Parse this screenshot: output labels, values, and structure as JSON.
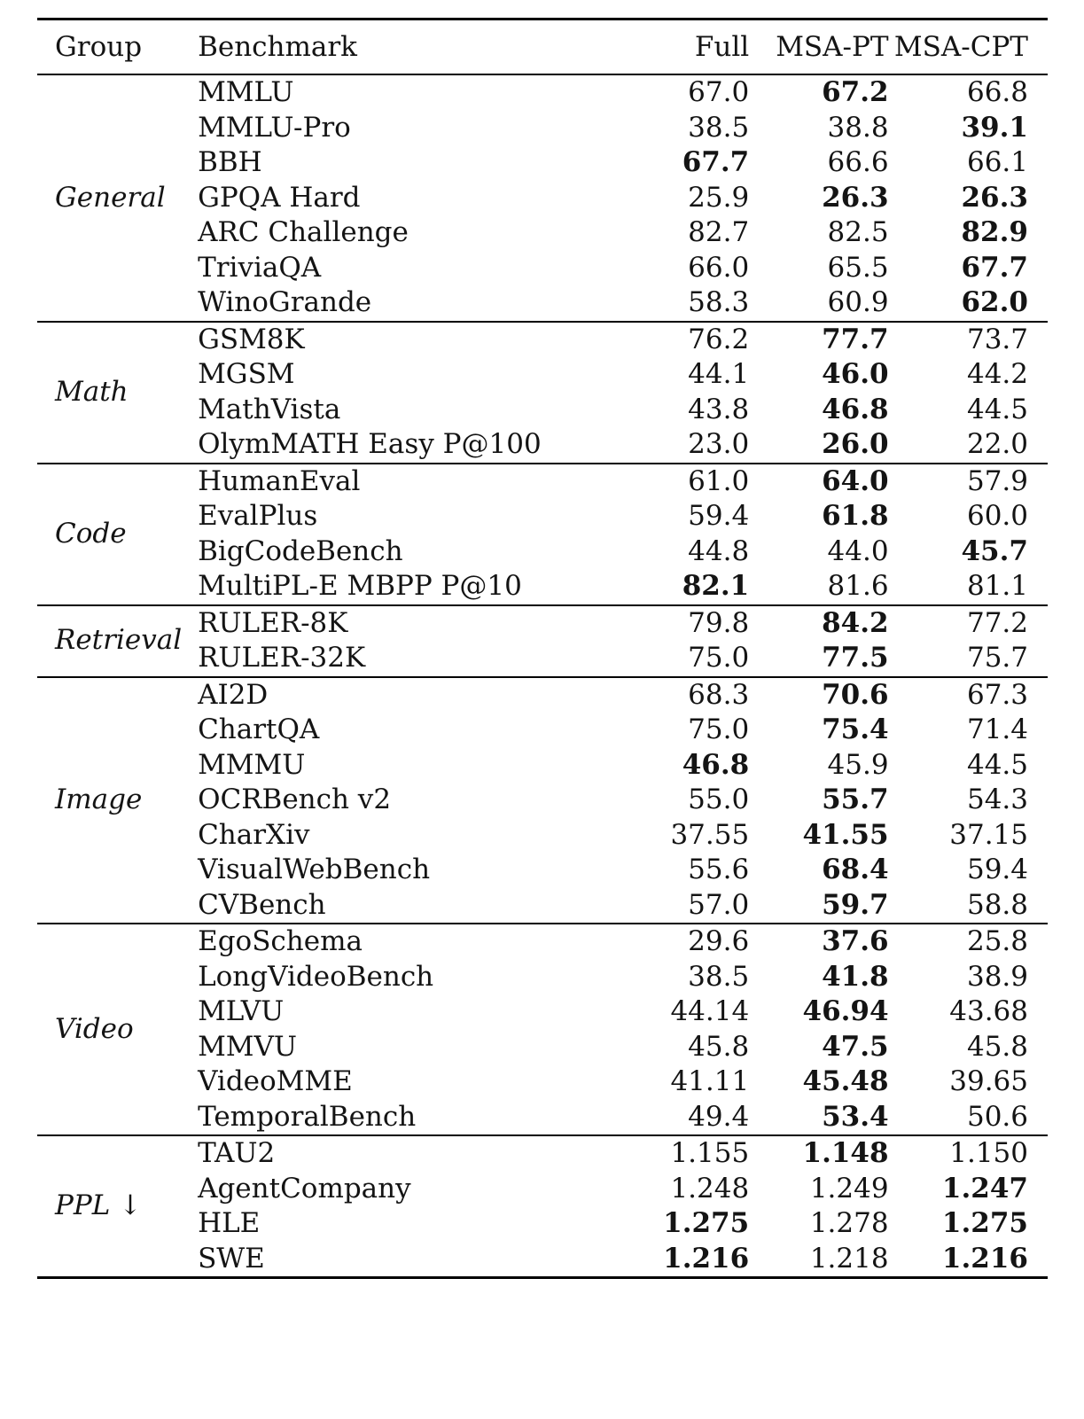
{
  "table": {
    "headers": {
      "group": "Group",
      "benchmark": "Benchmark",
      "full": "Full",
      "msa_pt": "MSA-PT",
      "msa_cpt": "MSA-CPT"
    },
    "groups": [
      {
        "name": "General",
        "rows": [
          {
            "benchmark": "MMLU",
            "full": "67.0",
            "msa_pt": "67.2",
            "msa_cpt": "66.8",
            "best": [
              "msa_pt"
            ]
          },
          {
            "benchmark": "MMLU-Pro",
            "full": "38.5",
            "msa_pt": "38.8",
            "msa_cpt": "39.1",
            "best": [
              "msa_cpt"
            ]
          },
          {
            "benchmark": "BBH",
            "full": "67.7",
            "msa_pt": "66.6",
            "msa_cpt": "66.1",
            "best": [
              "full"
            ]
          },
          {
            "benchmark": "GPQA Hard",
            "full": "25.9",
            "msa_pt": "26.3",
            "msa_cpt": "26.3",
            "best": [
              "msa_pt",
              "msa_cpt"
            ]
          },
          {
            "benchmark": "ARC Challenge",
            "full": "82.7",
            "msa_pt": "82.5",
            "msa_cpt": "82.9",
            "best": [
              "msa_cpt"
            ]
          },
          {
            "benchmark": "TriviaQA",
            "full": "66.0",
            "msa_pt": "65.5",
            "msa_cpt": "67.7",
            "best": [
              "msa_cpt"
            ]
          },
          {
            "benchmark": "WinoGrande",
            "full": "58.3",
            "msa_pt": "60.9",
            "msa_cpt": "62.0",
            "best": [
              "msa_cpt"
            ]
          }
        ]
      },
      {
        "name": "Math",
        "rows": [
          {
            "benchmark": "GSM8K",
            "full": "76.2",
            "msa_pt": "77.7",
            "msa_cpt": "73.7",
            "best": [
              "msa_pt"
            ]
          },
          {
            "benchmark": "MGSM",
            "full": "44.1",
            "msa_pt": "46.0",
            "msa_cpt": "44.2",
            "best": [
              "msa_pt"
            ]
          },
          {
            "benchmark": "MathVista",
            "full": "43.8",
            "msa_pt": "46.8",
            "msa_cpt": "44.5",
            "best": [
              "msa_pt"
            ]
          },
          {
            "benchmark": "OlymMATH Easy P@100",
            "full": "23.0",
            "msa_pt": "26.0",
            "msa_cpt": "22.0",
            "best": [
              "msa_pt"
            ]
          }
        ]
      },
      {
        "name": "Code",
        "rows": [
          {
            "benchmark": "HumanEval",
            "full": "61.0",
            "msa_pt": "64.0",
            "msa_cpt": "57.9",
            "best": [
              "msa_pt"
            ]
          },
          {
            "benchmark": "EvalPlus",
            "full": "59.4",
            "msa_pt": "61.8",
            "msa_cpt": "60.0",
            "best": [
              "msa_pt"
            ]
          },
          {
            "benchmark": "BigCodeBench",
            "full": "44.8",
            "msa_pt": "44.0",
            "msa_cpt": "45.7",
            "best": [
              "msa_cpt"
            ]
          },
          {
            "benchmark": "MultiPL-E MBPP P@10",
            "full": "82.1",
            "msa_pt": "81.6",
            "msa_cpt": "81.1",
            "best": [
              "full"
            ]
          }
        ]
      },
      {
        "name": "Retrieval",
        "rows": [
          {
            "benchmark": "RULER-8K",
            "full": "79.8",
            "msa_pt": "84.2",
            "msa_cpt": "77.2",
            "best": [
              "msa_pt"
            ]
          },
          {
            "benchmark": "RULER-32K",
            "full": "75.0",
            "msa_pt": "77.5",
            "msa_cpt": "75.7",
            "best": [
              "msa_pt"
            ]
          }
        ]
      },
      {
        "name": "Image",
        "rows": [
          {
            "benchmark": "AI2D",
            "full": "68.3",
            "msa_pt": "70.6",
            "msa_cpt": "67.3",
            "best": [
              "msa_pt"
            ]
          },
          {
            "benchmark": "ChartQA",
            "full": "75.0",
            "msa_pt": "75.4",
            "msa_cpt": "71.4",
            "best": [
              "msa_pt"
            ]
          },
          {
            "benchmark": "MMMU",
            "full": "46.8",
            "msa_pt": "45.9",
            "msa_cpt": "44.5",
            "best": [
              "full"
            ]
          },
          {
            "benchmark": "OCRBench v2",
            "full": "55.0",
            "msa_pt": "55.7",
            "msa_cpt": "54.3",
            "best": [
              "msa_pt"
            ]
          },
          {
            "benchmark": "CharXiv",
            "full": "37.55",
            "msa_pt": "41.55",
            "msa_cpt": "37.15",
            "best": [
              "msa_pt"
            ]
          },
          {
            "benchmark": "VisualWebBench",
            "full": "55.6",
            "msa_pt": "68.4",
            "msa_cpt": "59.4",
            "best": [
              "msa_pt"
            ]
          },
          {
            "benchmark": "CVBench",
            "full": "57.0",
            "msa_pt": "59.7",
            "msa_cpt": "58.8",
            "best": [
              "msa_pt"
            ]
          }
        ]
      },
      {
        "name": "Video",
        "rows": [
          {
            "benchmark": "EgoSchema",
            "full": "29.6",
            "msa_pt": "37.6",
            "msa_cpt": "25.8",
            "best": [
              "msa_pt"
            ]
          },
          {
            "benchmark": "LongVideoBench",
            "full": "38.5",
            "msa_pt": "41.8",
            "msa_cpt": "38.9",
            "best": [
              "msa_pt"
            ]
          },
          {
            "benchmark": "MLVU",
            "full": "44.14",
            "msa_pt": "46.94",
            "msa_cpt": "43.68",
            "best": [
              "msa_pt"
            ]
          },
          {
            "benchmark": "MMVU",
            "full": "45.8",
            "msa_pt": "47.5",
            "msa_cpt": "45.8",
            "best": [
              "msa_pt"
            ]
          },
          {
            "benchmark": "VideoMME",
            "full": "41.11",
            "msa_pt": "45.48",
            "msa_cpt": "39.65",
            "best": [
              "msa_pt"
            ]
          },
          {
            "benchmark": "TemporalBench",
            "full": "49.4",
            "msa_pt": "53.4",
            "msa_cpt": "50.6",
            "best": [
              "msa_pt"
            ]
          }
        ]
      },
      {
        "name": "PPL ↓",
        "rows": [
          {
            "benchmark": "TAU2",
            "full": "1.155",
            "msa_pt": "1.148",
            "msa_cpt": "1.150",
            "best": [
              "msa_pt"
            ]
          },
          {
            "benchmark": "AgentCompany",
            "full": "1.248",
            "msa_pt": "1.249",
            "msa_cpt": "1.247",
            "best": [
              "msa_cpt"
            ]
          },
          {
            "benchmark": "HLE",
            "full": "1.275",
            "msa_pt": "1.278",
            "msa_cpt": "1.275",
            "best": [
              "full",
              "msa_cpt"
            ]
          },
          {
            "benchmark": "SWE",
            "full": "1.216",
            "msa_pt": "1.218",
            "msa_cpt": "1.216",
            "best": [
              "full",
              "msa_cpt"
            ]
          }
        ]
      }
    ]
  }
}
